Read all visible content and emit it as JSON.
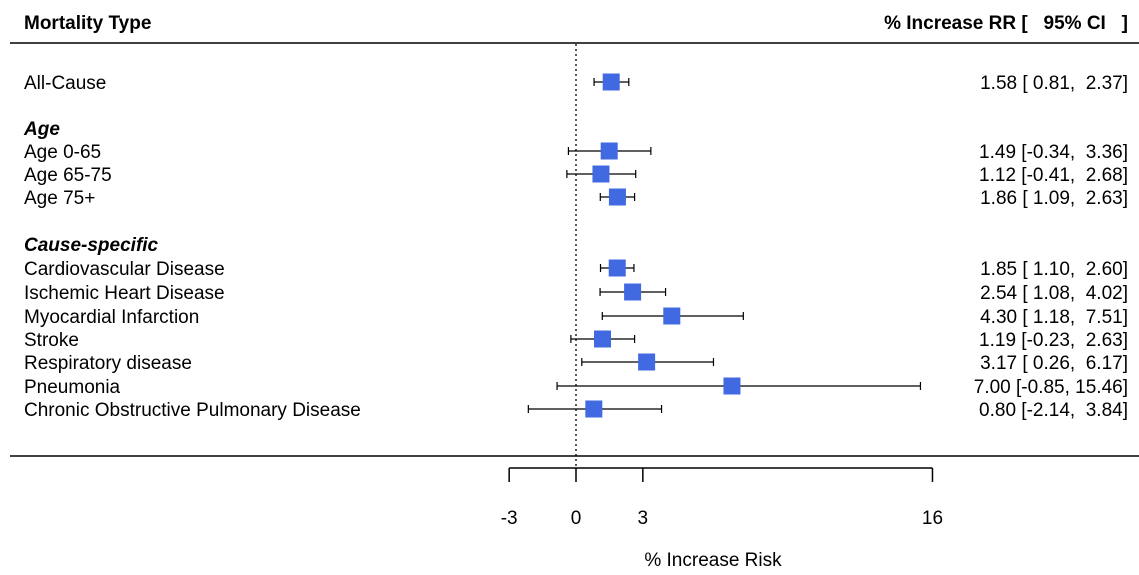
{
  "header": {
    "left": "Mortality Type",
    "right": "% Increase RR [   95% CI   ]"
  },
  "colors": {
    "marker": "#4169E1",
    "line": "#000000",
    "background": "#ffffff"
  },
  "chart_data": {
    "type": "forest",
    "title": "",
    "xlabel": "% Increase Risk",
    "xticks": [
      "-3",
      "0",
      "3",
      "16"
    ],
    "xlim": [
      -3,
      16
    ],
    "reference_line": 0,
    "rows": [
      {
        "kind": "study",
        "label": "All-Cause",
        "est": 1.58,
        "lo": 0.81,
        "hi": 2.37,
        "text": "1.58 [ 0.81,  2.37]"
      },
      {
        "kind": "group",
        "label": "Age"
      },
      {
        "kind": "study",
        "label": "Age 0-65",
        "est": 1.49,
        "lo": -0.34,
        "hi": 3.36,
        "text": "1.49 [-0.34,  3.36]"
      },
      {
        "kind": "study",
        "label": "Age 65-75",
        "est": 1.12,
        "lo": -0.41,
        "hi": 2.68,
        "text": "1.12 [-0.41,  2.68]"
      },
      {
        "kind": "study",
        "label": "Age 75+",
        "est": 1.86,
        "lo": 1.09,
        "hi": 2.63,
        "text": "1.86 [ 1.09,  2.63]"
      },
      {
        "kind": "group",
        "label": "Cause-specific"
      },
      {
        "kind": "study",
        "label": "Cardiovascular Disease",
        "est": 1.85,
        "lo": 1.1,
        "hi": 2.6,
        "text": "1.85 [ 1.10,  2.60]"
      },
      {
        "kind": "study",
        "label": "Ischemic Heart Disease",
        "est": 2.54,
        "lo": 1.08,
        "hi": 4.02,
        "text": "2.54 [ 1.08,  4.02]"
      },
      {
        "kind": "study",
        "label": "Myocardial Infarction",
        "est": 4.3,
        "lo": 1.18,
        "hi": 7.51,
        "text": "4.30 [ 1.18,  7.51]"
      },
      {
        "kind": "study",
        "label": "Stroke",
        "est": 1.19,
        "lo": -0.23,
        "hi": 2.63,
        "text": "1.19 [-0.23,  2.63]"
      },
      {
        "kind": "study",
        "label": "Respiratory disease",
        "est": 3.17,
        "lo": 0.26,
        "hi": 6.17,
        "text": "3.17 [ 0.26,  6.17]"
      },
      {
        "kind": "study",
        "label": "Pneumonia",
        "est": 7.0,
        "lo": -0.85,
        "hi": 15.46,
        "text": "7.00 [-0.85, 15.46]"
      },
      {
        "kind": "study",
        "label": "Chronic Obstructive Pulmonary Disease",
        "est": 0.8,
        "lo": -2.14,
        "hi": 3.84,
        "text": "0.80 [-2.14,  3.84]"
      }
    ]
  }
}
